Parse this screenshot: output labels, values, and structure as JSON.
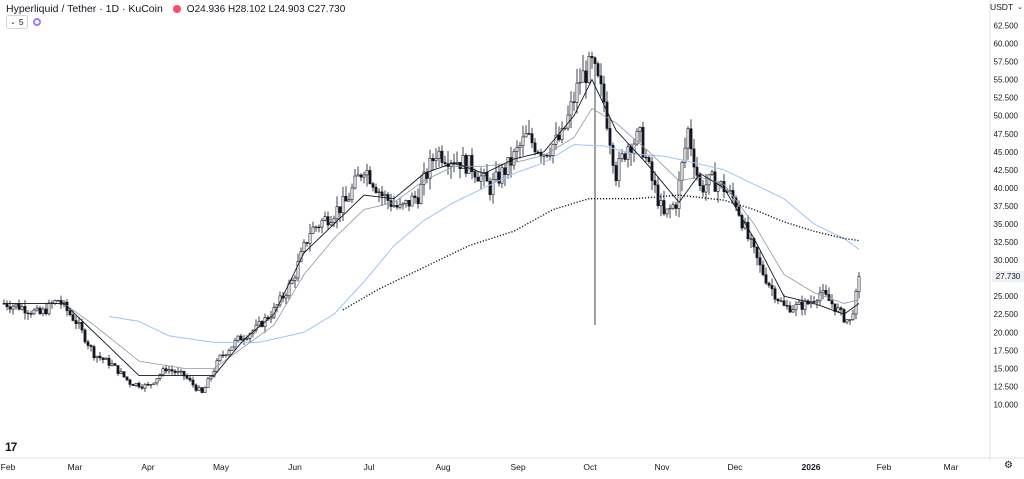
{
  "header": {
    "symbol_title": "Hyperliquid / Tether · 1D · KuCoin",
    "ohlc": "O24.936  H28.102  L24.903  C27.730"
  },
  "indicators": {
    "toggle_label": "5"
  },
  "currency_selector": {
    "label": "USDT"
  },
  "last_price_label": "27.730",
  "settings_icon": "gear-icon",
  "logo_text": "17",
  "colors": {
    "candle": "#131722",
    "ema_fast": "#131722",
    "ema_slow": "#8f96a3",
    "sma_blue": "#9cc4f5",
    "sma_dotted": "#131722",
    "live_dot": "#ff4a68"
  },
  "chart_data": {
    "type": "candlestick",
    "y_axis": {
      "min": 7.5,
      "max": 62.5,
      "ticks": [
        "62.500",
        "60.000",
        "57.500",
        "55.000",
        "52.500",
        "50.000",
        "47.500",
        "45.000",
        "42.500",
        "40.000",
        "37.500",
        "35.000",
        "32.500",
        "30.000",
        "27.500",
        "25.000",
        "22.500",
        "20.000",
        "17.500",
        "15.000",
        "12.500",
        "10.000"
      ]
    },
    "x_axis": {
      "labels": [
        "Feb",
        "Mar",
        "Apr",
        "May",
        "Jun",
        "Jul",
        "Aug",
        "Sep",
        "Oct",
        "Nov",
        "Dec",
        "2026",
        "Feb",
        "Mar"
      ]
    },
    "price_anchors": [
      [
        0,
        24
      ],
      [
        6,
        23.5
      ],
      [
        12,
        22.5
      ],
      [
        18,
        24.5
      ],
      [
        24,
        21.5
      ],
      [
        30,
        17
      ],
      [
        36,
        15.5
      ],
      [
        42,
        13
      ],
      [
        48,
        12.5
      ],
      [
        54,
        15
      ],
      [
        60,
        14
      ],
      [
        66,
        11.5
      ],
      [
        72,
        16.5
      ],
      [
        78,
        19
      ],
      [
        84,
        20.5
      ],
      [
        90,
        23
      ],
      [
        96,
        27
      ],
      [
        102,
        34
      ],
      [
        108,
        36
      ],
      [
        114,
        38
      ],
      [
        120,
        43
      ],
      [
        126,
        39
      ],
      [
        132,
        37
      ],
      [
        138,
        39
      ],
      [
        144,
        45
      ],
      [
        150,
        44
      ],
      [
        156,
        43
      ],
      [
        162,
        40
      ],
      [
        168,
        43
      ],
      [
        174,
        47
      ],
      [
        180,
        45
      ],
      [
        186,
        47
      ],
      [
        192,
        55
      ],
      [
        196,
        57
      ],
      [
        200,
        52
      ],
      [
        204,
        42
      ],
      [
        208,
        46
      ],
      [
        212,
        47
      ],
      [
        216,
        41
      ],
      [
        220,
        36
      ],
      [
        224,
        38
      ],
      [
        228,
        48
      ],
      [
        232,
        40
      ],
      [
        236,
        41
      ],
      [
        240,
        40
      ],
      [
        244,
        38
      ],
      [
        248,
        33
      ],
      [
        252,
        29
      ],
      [
        256,
        26
      ],
      [
        260,
        23.5
      ],
      [
        264,
        23.5
      ],
      [
        268,
        24
      ],
      [
        272,
        25.5
      ],
      [
        276,
        24
      ],
      [
        280,
        22
      ],
      [
        282,
        21.5
      ],
      [
        284,
        24.9
      ],
      [
        285,
        27.73
      ]
    ],
    "ema_fast_anchors": [
      [
        0,
        24
      ],
      [
        20,
        24
      ],
      [
        30,
        20
      ],
      [
        45,
        14
      ],
      [
        60,
        14
      ],
      [
        70,
        14
      ],
      [
        80,
        19
      ],
      [
        90,
        22.5
      ],
      [
        100,
        31
      ],
      [
        110,
        35
      ],
      [
        120,
        39
      ],
      [
        130,
        38.5
      ],
      [
        140,
        42
      ],
      [
        150,
        43.5
      ],
      [
        160,
        42
      ],
      [
        170,
        44
      ],
      [
        180,
        45
      ],
      [
        190,
        50
      ],
      [
        196,
        55
      ],
      [
        204,
        48
      ],
      [
        215,
        43
      ],
      [
        225,
        38
      ],
      [
        232,
        42
      ],
      [
        240,
        40
      ],
      [
        250,
        33
      ],
      [
        260,
        25
      ],
      [
        270,
        24
      ],
      [
        280,
        22.5
      ],
      [
        285,
        24
      ]
    ],
    "ema_slow_anchors": [
      [
        0,
        24
      ],
      [
        20,
        24
      ],
      [
        30,
        21
      ],
      [
        45,
        16
      ],
      [
        60,
        15
      ],
      [
        70,
        15
      ],
      [
        80,
        18
      ],
      [
        90,
        21
      ],
      [
        100,
        28
      ],
      [
        110,
        33
      ],
      [
        120,
        37
      ],
      [
        130,
        38
      ],
      [
        140,
        41
      ],
      [
        150,
        43
      ],
      [
        160,
        43
      ],
      [
        170,
        43.5
      ],
      [
        180,
        44.5
      ],
      [
        190,
        47
      ],
      [
        196,
        51
      ],
      [
        204,
        49
      ],
      [
        215,
        45
      ],
      [
        225,
        41
      ],
      [
        232,
        41.5
      ],
      [
        240,
        40.5
      ],
      [
        250,
        35
      ],
      [
        260,
        28
      ],
      [
        270,
        25.5
      ],
      [
        280,
        24
      ],
      [
        285,
        24.5
      ]
    ],
    "sma_blue_anchors": [
      [
        35,
        22.2
      ],
      [
        45,
        21.5
      ],
      [
        55,
        19.5
      ],
      [
        70,
        18.6
      ],
      [
        85,
        18.6
      ],
      [
        100,
        20
      ],
      [
        110,
        22.5
      ],
      [
        120,
        27
      ],
      [
        130,
        32
      ],
      [
        140,
        35.5
      ],
      [
        150,
        38
      ],
      [
        160,
        40
      ],
      [
        170,
        42
      ],
      [
        180,
        43.5
      ],
      [
        190,
        46
      ],
      [
        200,
        45.8
      ],
      [
        210,
        44.7
      ],
      [
        220,
        44.4
      ],
      [
        230,
        43.5
      ],
      [
        240,
        42.5
      ],
      [
        250,
        40.5
      ],
      [
        260,
        38.5
      ],
      [
        270,
        35
      ],
      [
        280,
        33
      ],
      [
        285,
        31.5
      ]
    ],
    "sma_dotted_anchors": [
      [
        113,
        23.1
      ],
      [
        125,
        26
      ],
      [
        140,
        29
      ],
      [
        155,
        32
      ],
      [
        170,
        34
      ],
      [
        183,
        37
      ],
      [
        195,
        38.5
      ],
      [
        210,
        38.5
      ],
      [
        225,
        39
      ],
      [
        240,
        38.3
      ],
      [
        250,
        37
      ],
      [
        260,
        35.3
      ],
      [
        270,
        34
      ],
      [
        280,
        33
      ],
      [
        285,
        32.7
      ]
    ],
    "wick_spike": {
      "index": 197,
      "low": 21.0
    },
    "last_price": 27.73
  }
}
